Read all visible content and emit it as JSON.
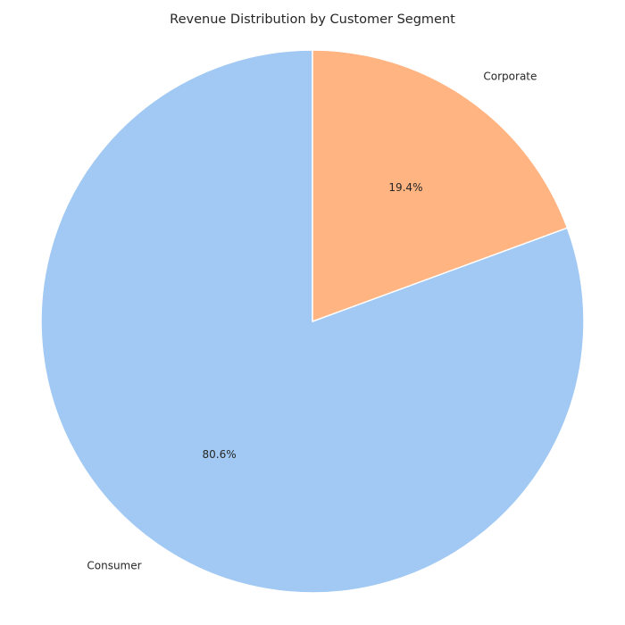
{
  "chart_data": {
    "type": "pie",
    "title": "Revenue Distribution by Customer Segment",
    "start_angle": "top (90°), counterclockwise",
    "slices": [
      {
        "label": "Consumer",
        "value": 80.6,
        "pct_label": "80.6%",
        "color": "#a1c9f4"
      },
      {
        "label": "Corporate",
        "value": 19.4,
        "pct_label": "19.4%",
        "color": "#ffb482"
      }
    ],
    "edge_color": "#ffffff"
  }
}
